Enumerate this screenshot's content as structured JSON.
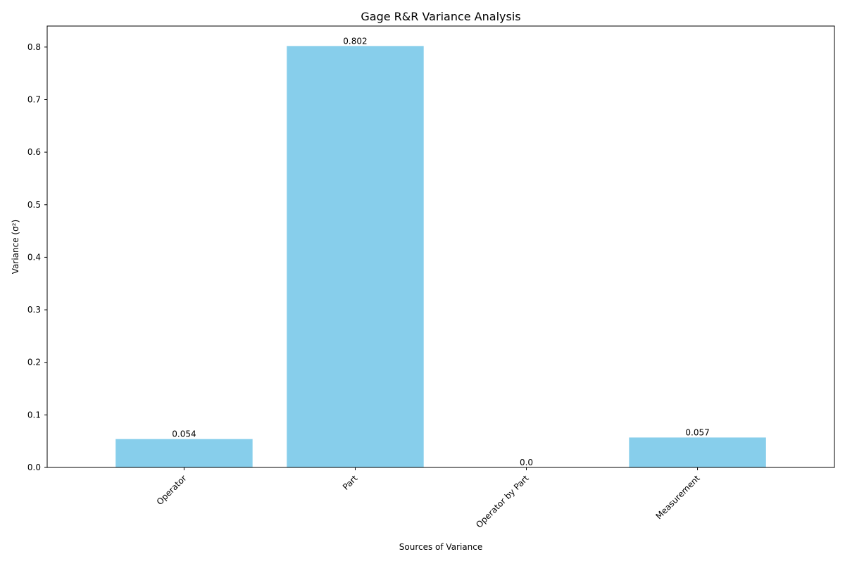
{
  "chart_data": {
    "type": "bar",
    "title": "Gage R&R Variance Analysis",
    "xlabel": "Sources of Variance",
    "ylabel": "Variance (σ²)",
    "categories": [
      "Operator",
      "Part",
      "Operator by Part",
      "Measurement"
    ],
    "values": [
      0.054,
      0.802,
      0.0,
      0.057
    ],
    "value_labels": [
      "0.054",
      "0.802",
      "0.0",
      "0.057"
    ],
    "ylim": [
      0,
      0.84
    ],
    "yticks": [
      0.0,
      0.1,
      0.2,
      0.3,
      0.4,
      0.5,
      0.6,
      0.7,
      0.8
    ],
    "ytick_labels": [
      "0.0",
      "0.1",
      "0.2",
      "0.3",
      "0.4",
      "0.5",
      "0.6",
      "0.7",
      "0.8"
    ],
    "xtick_rotation_deg": 45,
    "grid": false,
    "legend": "none",
    "bar_color": "#87ceeb"
  }
}
